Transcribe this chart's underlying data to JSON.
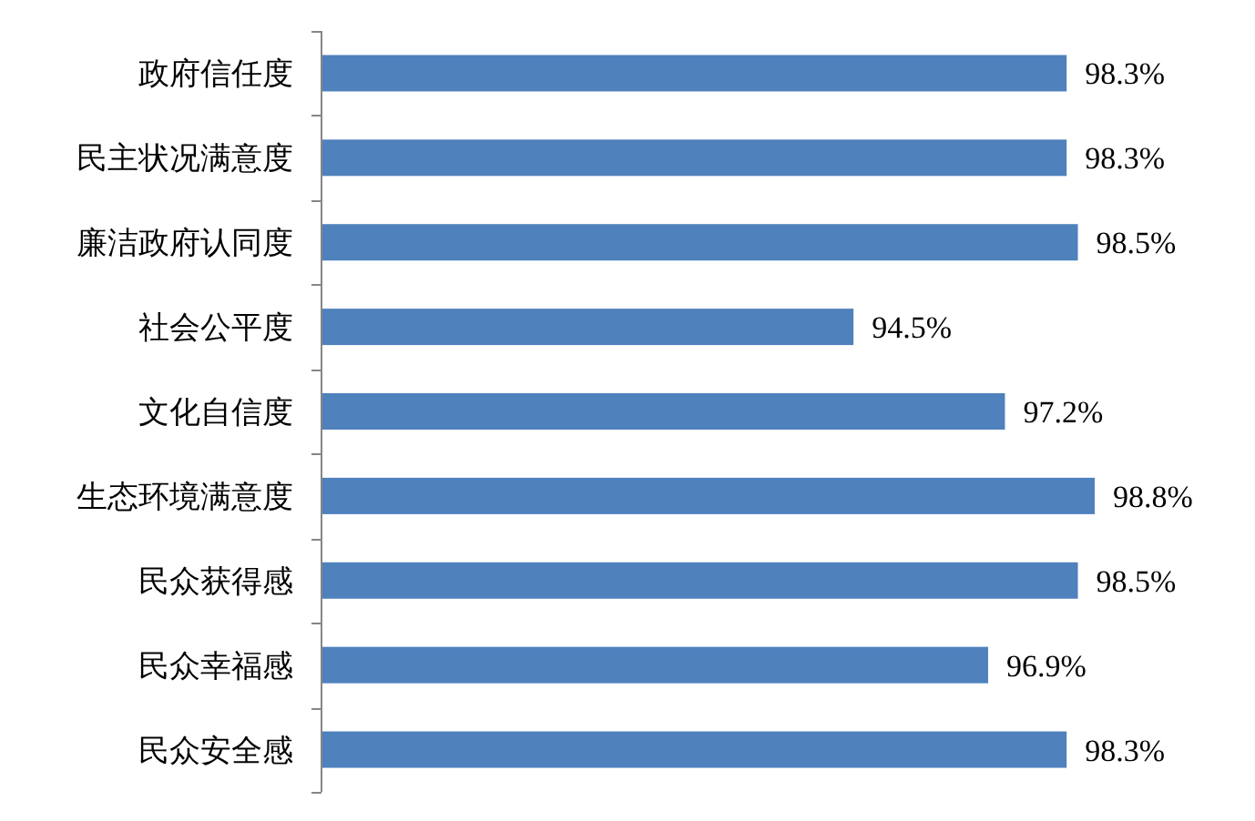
{
  "chart_data": {
    "type": "bar",
    "orientation": "horizontal",
    "categories": [
      "政府信任度",
      "民主状况满意度",
      "廉洁政府认同度",
      "社会公平度",
      "文化自信度",
      "生态环境满意度",
      "民众获得感",
      "民众幸福感",
      "民众安全感"
    ],
    "values": [
      98.3,
      98.3,
      98.5,
      94.5,
      97.2,
      98.8,
      98.5,
      96.9,
      98.3
    ],
    "value_labels": [
      "98.3%",
      "98.3%",
      "98.5%",
      "94.5%",
      "97.2%",
      "98.8%",
      "98.5%",
      "96.9%",
      "98.3%"
    ],
    "color": "#4f81bd",
    "xlim": [
      85,
      98.8
    ]
  }
}
